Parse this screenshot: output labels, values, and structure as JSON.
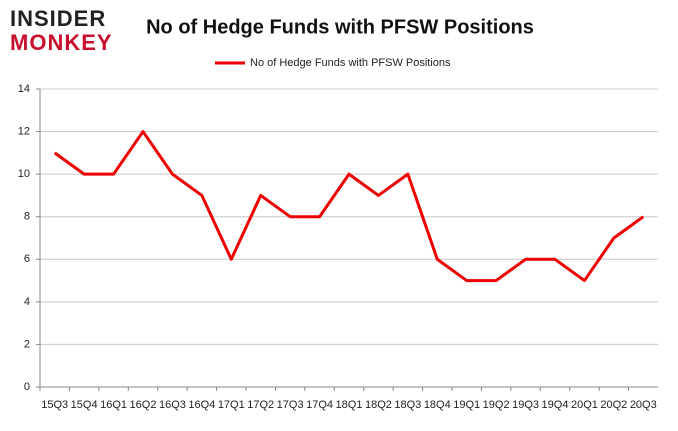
{
  "logo": {
    "line1": "INSIDER",
    "line2": "MONKEY"
  },
  "chart_data": {
    "type": "line",
    "title": "No of Hedge Funds with PFSW Positions",
    "categories": [
      "15Q3",
      "15Q4",
      "16Q1",
      "16Q2",
      "16Q3",
      "16Q4",
      "17Q1",
      "17Q2",
      "17Q3",
      "17Q4",
      "18Q1",
      "18Q2",
      "18Q3",
      "18Q4",
      "19Q1",
      "19Q2",
      "19Q3",
      "19Q4",
      "20Q1",
      "20Q2",
      "20Q3"
    ],
    "series": [
      {
        "name": "No of Hedge Funds with PFSW Positions",
        "color": "#ee0000",
        "values": [
          11,
          10,
          10,
          12,
          10,
          9,
          6,
          9,
          8,
          8,
          10,
          9,
          10,
          6,
          5,
          5,
          6,
          6,
          5,
          7,
          8
        ]
      }
    ],
    "ylim": [
      0,
      14
    ],
    "yticks": [
      0,
      2,
      4,
      6,
      8,
      10,
      12,
      14
    ],
    "grid": true,
    "legend": "top"
  }
}
